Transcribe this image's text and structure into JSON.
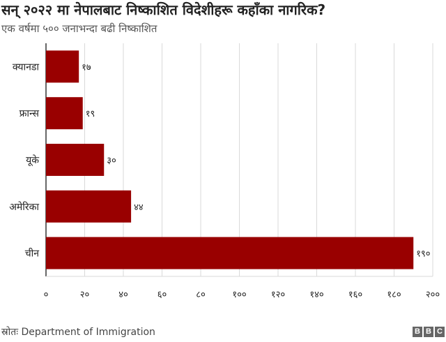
{
  "title": "सन् २०२२ मा नेपालबाट निष्काशित विदेशीहरू कहाँका नागरिक?",
  "subtitle": "एक वर्षमा ५०० जनाभन्दा बढी निष्काशित",
  "source": "स्रोतः Department of Immigration",
  "brand": [
    "B",
    "B",
    "C"
  ],
  "colors": {
    "bar": "#990000",
    "grid": "#d9d9d9",
    "axis": "#333333",
    "text": "#222222"
  },
  "chart_data": {
    "type": "bar",
    "orientation": "horizontal",
    "categories": [
      "क्यानडा",
      "फ्रान्स",
      "यूके",
      "अमेरिका",
      "चीन"
    ],
    "values": [
      17,
      19,
      30,
      44,
      190
    ],
    "value_labels": [
      "१७",
      "१९",
      "३०",
      "४४",
      "१९०"
    ],
    "xlim": [
      0,
      200
    ],
    "xticks": [
      0,
      20,
      40,
      60,
      80,
      100,
      120,
      140,
      160,
      180,
      200
    ],
    "xtick_labels": [
      "०",
      "२०",
      "४०",
      "६०",
      "८०",
      "१००",
      "१२०",
      "१४०",
      "१६०",
      "१८०",
      "२००"
    ],
    "grid": true
  }
}
